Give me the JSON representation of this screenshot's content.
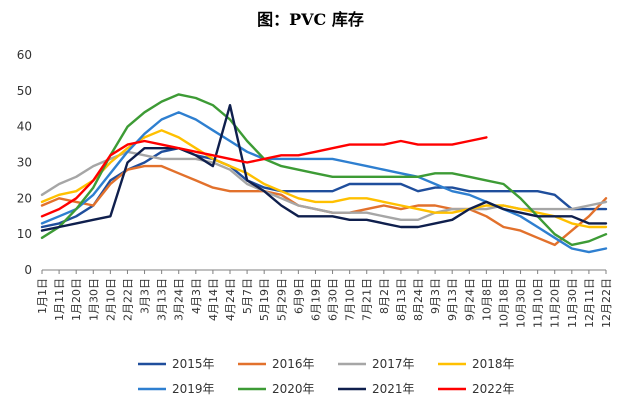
{
  "chart_data": {
    "type": "line",
    "title": "图：PVC 库存",
    "xlabel": "",
    "ylabel": "",
    "ylim": [
      0,
      60
    ],
    "yticks": [
      0,
      10,
      20,
      30,
      40,
      50,
      60
    ],
    "x_labels": [
      "1月1日",
      "1月11日",
      "1月20日",
      "1月30日",
      "2月10日",
      "2月22日",
      "3月3日",
      "3月13日",
      "3月24日",
      "4月3日",
      "4月14日",
      "4月24日",
      "5月7日",
      "5月19日",
      "5月29日",
      "6月9日",
      "6月19日",
      "6月30日",
      "7月10日",
      "7月21日",
      "8月2日",
      "8月13日",
      "8月24日",
      "9月3日",
      "9月13日",
      "9月24日",
      "10月8日",
      "10月18日",
      "10月30日",
      "11月10日",
      "11月20日",
      "11月30日",
      "12月11日",
      "12月22日"
    ],
    "legend_position": "bottom",
    "series": [
      {
        "name": "2015年",
        "color": "#1f4e9c",
        "values": [
          12,
          13,
          15,
          18,
          25,
          28,
          30,
          33,
          34,
          32,
          31,
          29,
          25,
          23,
          22,
          22,
          22,
          22,
          24,
          24,
          24,
          24,
          22,
          23,
          23,
          22,
          22,
          22,
          22,
          22,
          21,
          17,
          17,
          17
        ]
      },
      {
        "name": "2016年",
        "color": "#e2712c",
        "values": [
          18,
          20,
          19,
          18,
          24,
          28,
          29,
          29,
          27,
          25,
          23,
          22,
          22,
          22,
          21,
          18,
          17,
          16,
          16,
          17,
          18,
          17,
          18,
          18,
          17,
          17,
          15,
          12,
          11,
          9,
          7,
          11,
          15,
          20
        ]
      },
      {
        "name": "2017年",
        "color": "#a6a6a6",
        "values": [
          21,
          24,
          26,
          29,
          31,
          33,
          32,
          31,
          31,
          31,
          30,
          28,
          24,
          22,
          20,
          18,
          17,
          16,
          16,
          16,
          15,
          14,
          14,
          16,
          17,
          17,
          17,
          18,
          17,
          17,
          17,
          17,
          18,
          19
        ]
      },
      {
        "name": "2018年",
        "color": "#ffc000",
        "values": [
          19,
          21,
          22,
          25,
          30,
          34,
          37,
          39,
          37,
          34,
          31,
          29,
          27,
          24,
          22,
          20,
          19,
          19,
          20,
          20,
          19,
          18,
          17,
          16,
          16,
          17,
          18,
          18,
          17,
          16,
          15,
          13,
          12,
          12
        ]
      },
      {
        "name": "2019年",
        "color": "#2e7fd0",
        "values": [
          13,
          15,
          17,
          21,
          27,
          33,
          38,
          42,
          44,
          42,
          39,
          36,
          33,
          31,
          31,
          31,
          31,
          31,
          30,
          29,
          28,
          27,
          26,
          24,
          22,
          21,
          19,
          17,
          15,
          12,
          9,
          6,
          5,
          6
        ]
      },
      {
        "name": "2020年",
        "color": "#3d9b35",
        "values": [
          9,
          12,
          17,
          23,
          32,
          40,
          44,
          47,
          49,
          48,
          46,
          42,
          36,
          31,
          29,
          28,
          27,
          26,
          26,
          26,
          26,
          26,
          26,
          27,
          27,
          26,
          25,
          24,
          20,
          15,
          10,
          7,
          8,
          10
        ]
      },
      {
        "name": "2021年",
        "color": "#0f1f4d",
        "values": [
          11,
          12,
          13,
          14,
          15,
          30,
          34,
          34,
          34,
          32,
          29,
          46,
          25,
          22,
          18,
          15,
          15,
          15,
          14,
          14,
          13,
          12,
          12,
          13,
          14,
          17,
          19,
          17,
          16,
          15,
          15,
          15,
          13,
          13
        ]
      },
      {
        "name": "2022年",
        "color": "#ff0000",
        "values": [
          15,
          17,
          20,
          25,
          32,
          35,
          36,
          35,
          34,
          33,
          32,
          31,
          30,
          31,
          32,
          32,
          33,
          34,
          35,
          35,
          35,
          36,
          35,
          35,
          35,
          36,
          37
        ]
      }
    ]
  }
}
